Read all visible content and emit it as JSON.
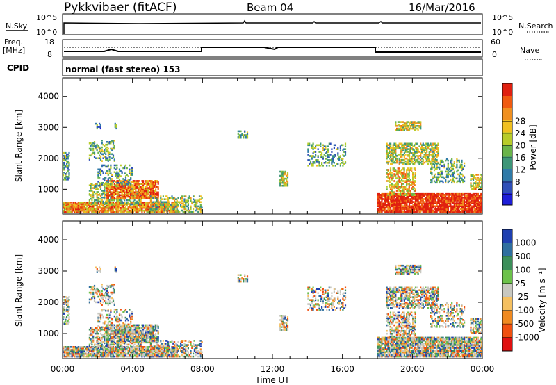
{
  "header": {
    "title": "Pykkvibaer (fitACF)",
    "beam": "Beam 04",
    "date": "16/Mar/2016"
  },
  "top_panels": {
    "nsky_label": "N.Sky",
    "nsky_ticks": [
      "10^5",
      "10^0"
    ],
    "nsearch_ticks": [
      "10^5",
      "10^0"
    ],
    "nsearch_label": "N.Search",
    "freq_label_1": "Freq.",
    "freq_label_2": "[MHz]",
    "freq_ticks": [
      "18",
      "8"
    ],
    "nave_ticks": [
      "60",
      "0"
    ],
    "nave_label": "Nave",
    "cpid_label": "CPID",
    "cpid_text": "normal (fast stereo) 153"
  },
  "chart_data": [
    {
      "type": "heatmap",
      "title": "",
      "ylabel": "Slant Range [km]",
      "xlabel": "",
      "y_ticks": [
        "1000",
        "2000",
        "3000",
        "4000"
      ],
      "ylim": [
        200,
        4600
      ],
      "colorbar": {
        "label": "Power [dB]",
        "ticks": [
          "4",
          "8",
          "12",
          "16",
          "20",
          "24",
          "28"
        ],
        "colors": [
          "#1e1ed8",
          "#2f4fb8",
          "#2f7aa8",
          "#3d9678",
          "#6ab44a",
          "#b8cc2a",
          "#f0c020",
          "#f09020",
          "#f05a10",
          "#e02010"
        ]
      }
    },
    {
      "type": "heatmap",
      "title": "",
      "ylabel": "Slant Range [km]",
      "xlabel": "Time UT",
      "y_ticks": [
        "1000",
        "2000",
        "3000",
        "4000"
      ],
      "ylim": [
        200,
        4600
      ],
      "x_ticks": [
        "00:00",
        "04:00",
        "08:00",
        "12:00",
        "16:00",
        "20:00",
        "00:00"
      ],
      "colorbar": {
        "label": "Velocity [m s⁻¹]",
        "ticks": [
          "1000",
          "500",
          "100",
          "25",
          "-25",
          "-100",
          "-500",
          "-1000"
        ],
        "colors": [
          "#1e3fb0",
          "#2f6f9f",
          "#3c8f5a",
          "#6cc24a",
          "#c8c8c0",
          "#f5c060",
          "#f08a20",
          "#f05010",
          "#e01010"
        ]
      }
    }
  ]
}
